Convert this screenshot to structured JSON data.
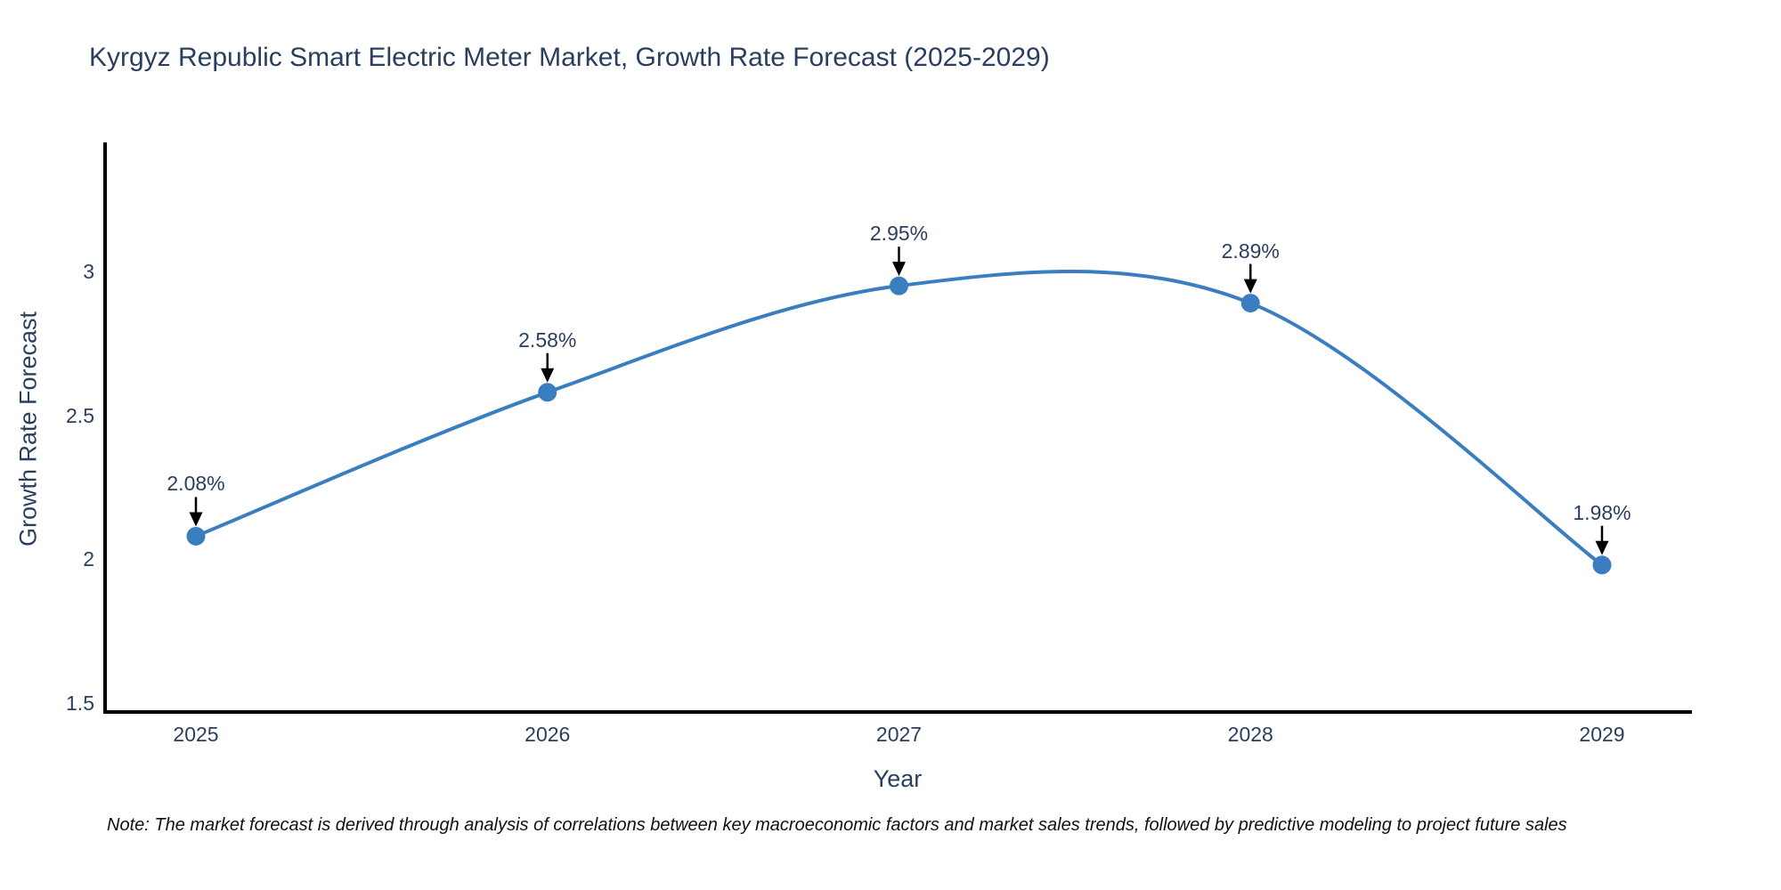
{
  "title": "Kyrgyz Republic Smart Electric Meter Market, Growth Rate Forecast (2025-2029)",
  "note": "Note: The market forecast is derived through analysis of correlations between key macroeconomic factors and market sales trends, followed by predictive modeling to project future sales",
  "chart_data": {
    "type": "line",
    "line_shape": "spline",
    "title": "Kyrgyz Republic Smart Electric Meter Market, Growth Rate Forecast (2025-2029)",
    "categories": [
      "2025",
      "2026",
      "2027",
      "2028",
      "2029"
    ],
    "values": [
      2.08,
      2.58,
      2.95,
      2.89,
      1.98
    ],
    "point_labels": [
      "2.08%",
      "2.58%",
      "2.95%",
      "2.89%",
      "1.98%"
    ],
    "xlabel": "Year",
    "ylabel": "Growth Rate Forecast",
    "yticks": [
      3,
      2.5,
      2,
      1.5
    ],
    "ytick_labels": [
      "3",
      "2.5",
      "2",
      "1.5"
    ],
    "ylim": [
      1.47,
      3.45
    ],
    "grid": false,
    "legend": "none",
    "colors": {
      "line": "#3a7ebf",
      "marker": "#3a7ebf",
      "axis": "#000000",
      "text": "#2a3f5f",
      "annotation_arrow": "#000000",
      "background": "#ffffff"
    }
  }
}
